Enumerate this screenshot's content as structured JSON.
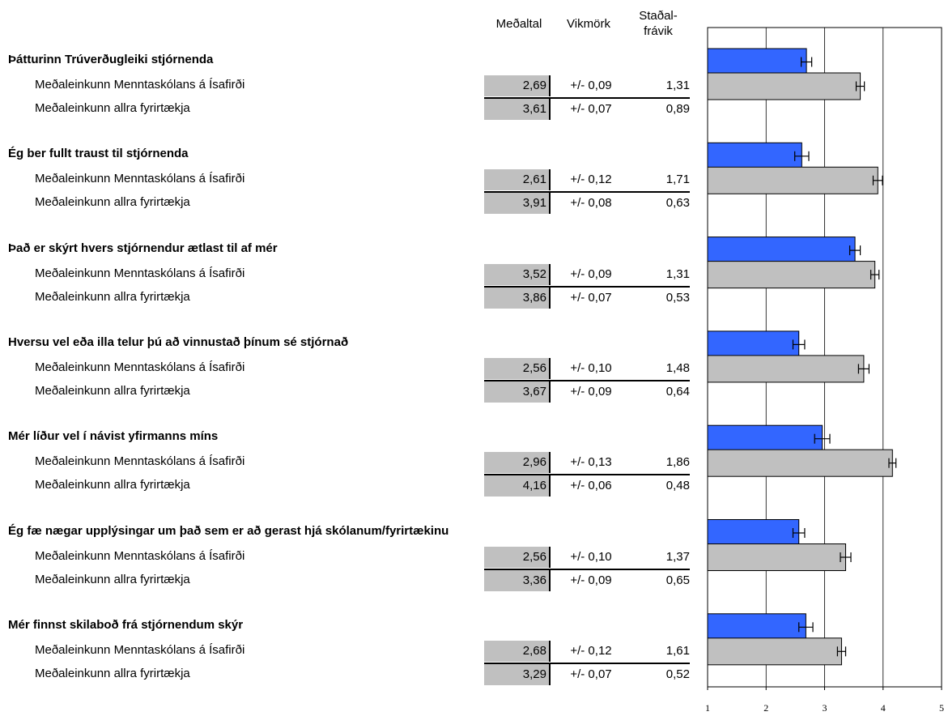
{
  "headers": {
    "mean": "Meðaltal",
    "moe": "Vikmörk",
    "sd_line1": "Staðal-",
    "sd_line2": "frávik"
  },
  "chart_data": {
    "type": "bar",
    "orientation": "horizontal",
    "xlim": [
      1,
      5
    ],
    "xticks": [
      "1",
      "2",
      "3",
      "4",
      "5"
    ],
    "grid": true,
    "colors": {
      "school": "#3366ff",
      "all": "#c0c0c0"
    },
    "groups": [
      {
        "title": "Þátturinn Trúverðugleiki stjórnenda",
        "rows": [
          {
            "label": "Meðaleinkunn Menntaskólans á Ísafirði",
            "mean": "2,69",
            "moe": "+/- 0,09",
            "sd": "1,31",
            "value": 2.69,
            "err": 0.09
          },
          {
            "label": "Meðaleinkunn allra fyrirtækja",
            "mean": "3,61",
            "moe": "+/- 0,07",
            "sd": "0,89",
            "value": 3.61,
            "err": 0.07
          }
        ]
      },
      {
        "title": "Ég ber fullt traust til stjórnenda",
        "rows": [
          {
            "label": "Meðaleinkunn Menntaskólans á Ísafirði",
            "mean": "2,61",
            "moe": "+/- 0,12",
            "sd": "1,71",
            "value": 2.61,
            "err": 0.12
          },
          {
            "label": "Meðaleinkunn allra fyrirtækja",
            "mean": "3,91",
            "moe": "+/- 0,08",
            "sd": "0,63",
            "value": 3.91,
            "err": 0.08
          }
        ]
      },
      {
        "title": "Það er skýrt hvers stjórnendur ætlast til af mér",
        "rows": [
          {
            "label": "Meðaleinkunn Menntaskólans á Ísafirði",
            "mean": "3,52",
            "moe": "+/- 0,09",
            "sd": "1,31",
            "value": 3.52,
            "err": 0.09
          },
          {
            "label": "Meðaleinkunn allra fyrirtækja",
            "mean": "3,86",
            "moe": "+/- 0,07",
            "sd": "0,53",
            "value": 3.86,
            "err": 0.07
          }
        ]
      },
      {
        "title": "Hversu vel eða illa telur þú að vinnustað þínum sé stjórnað",
        "rows": [
          {
            "label": "Meðaleinkunn Menntaskólans á Ísafirði",
            "mean": "2,56",
            "moe": "+/- 0,10",
            "sd": "1,48",
            "value": 2.56,
            "err": 0.1
          },
          {
            "label": "Meðaleinkunn allra fyrirtækja",
            "mean": "3,67",
            "moe": "+/- 0,09",
            "sd": "0,64",
            "value": 3.67,
            "err": 0.09
          }
        ]
      },
      {
        "title": "Mér líður vel í návist yfirmanns míns",
        "rows": [
          {
            "label": "Meðaleinkunn Menntaskólans á Ísafirði",
            "mean": "2,96",
            "moe": "+/- 0,13",
            "sd": "1,86",
            "value": 2.96,
            "err": 0.13
          },
          {
            "label": "Meðaleinkunn allra fyrirtækja",
            "mean": "4,16",
            "moe": "+/- 0,06",
            "sd": "0,48",
            "value": 4.16,
            "err": 0.06
          }
        ]
      },
      {
        "title": "Ég fæ nægar upplýsingar um það sem er að gerast hjá skólanum/fyrirtækinu",
        "rows": [
          {
            "label": "Meðaleinkunn Menntaskólans á Ísafirði",
            "mean": "2,56",
            "moe": "+/- 0,10",
            "sd": "1,37",
            "value": 2.56,
            "err": 0.1
          },
          {
            "label": "Meðaleinkunn allra fyrirtækja",
            "mean": "3,36",
            "moe": "+/- 0,09",
            "sd": "0,65",
            "value": 3.36,
            "err": 0.09
          }
        ]
      },
      {
        "title": "Mér finnst skilaboð frá stjórnendum skýr",
        "rows": [
          {
            "label": "Meðaleinkunn Menntaskólans á Ísafirði",
            "mean": "2,68",
            "moe": "+/- 0,12",
            "sd": "1,61",
            "value": 2.68,
            "err": 0.12
          },
          {
            "label": "Meðaleinkunn allra fyrirtækja",
            "mean": "3,29",
            "moe": "+/- 0,07",
            "sd": "0,52",
            "value": 3.29,
            "err": 0.07
          }
        ]
      }
    ]
  }
}
